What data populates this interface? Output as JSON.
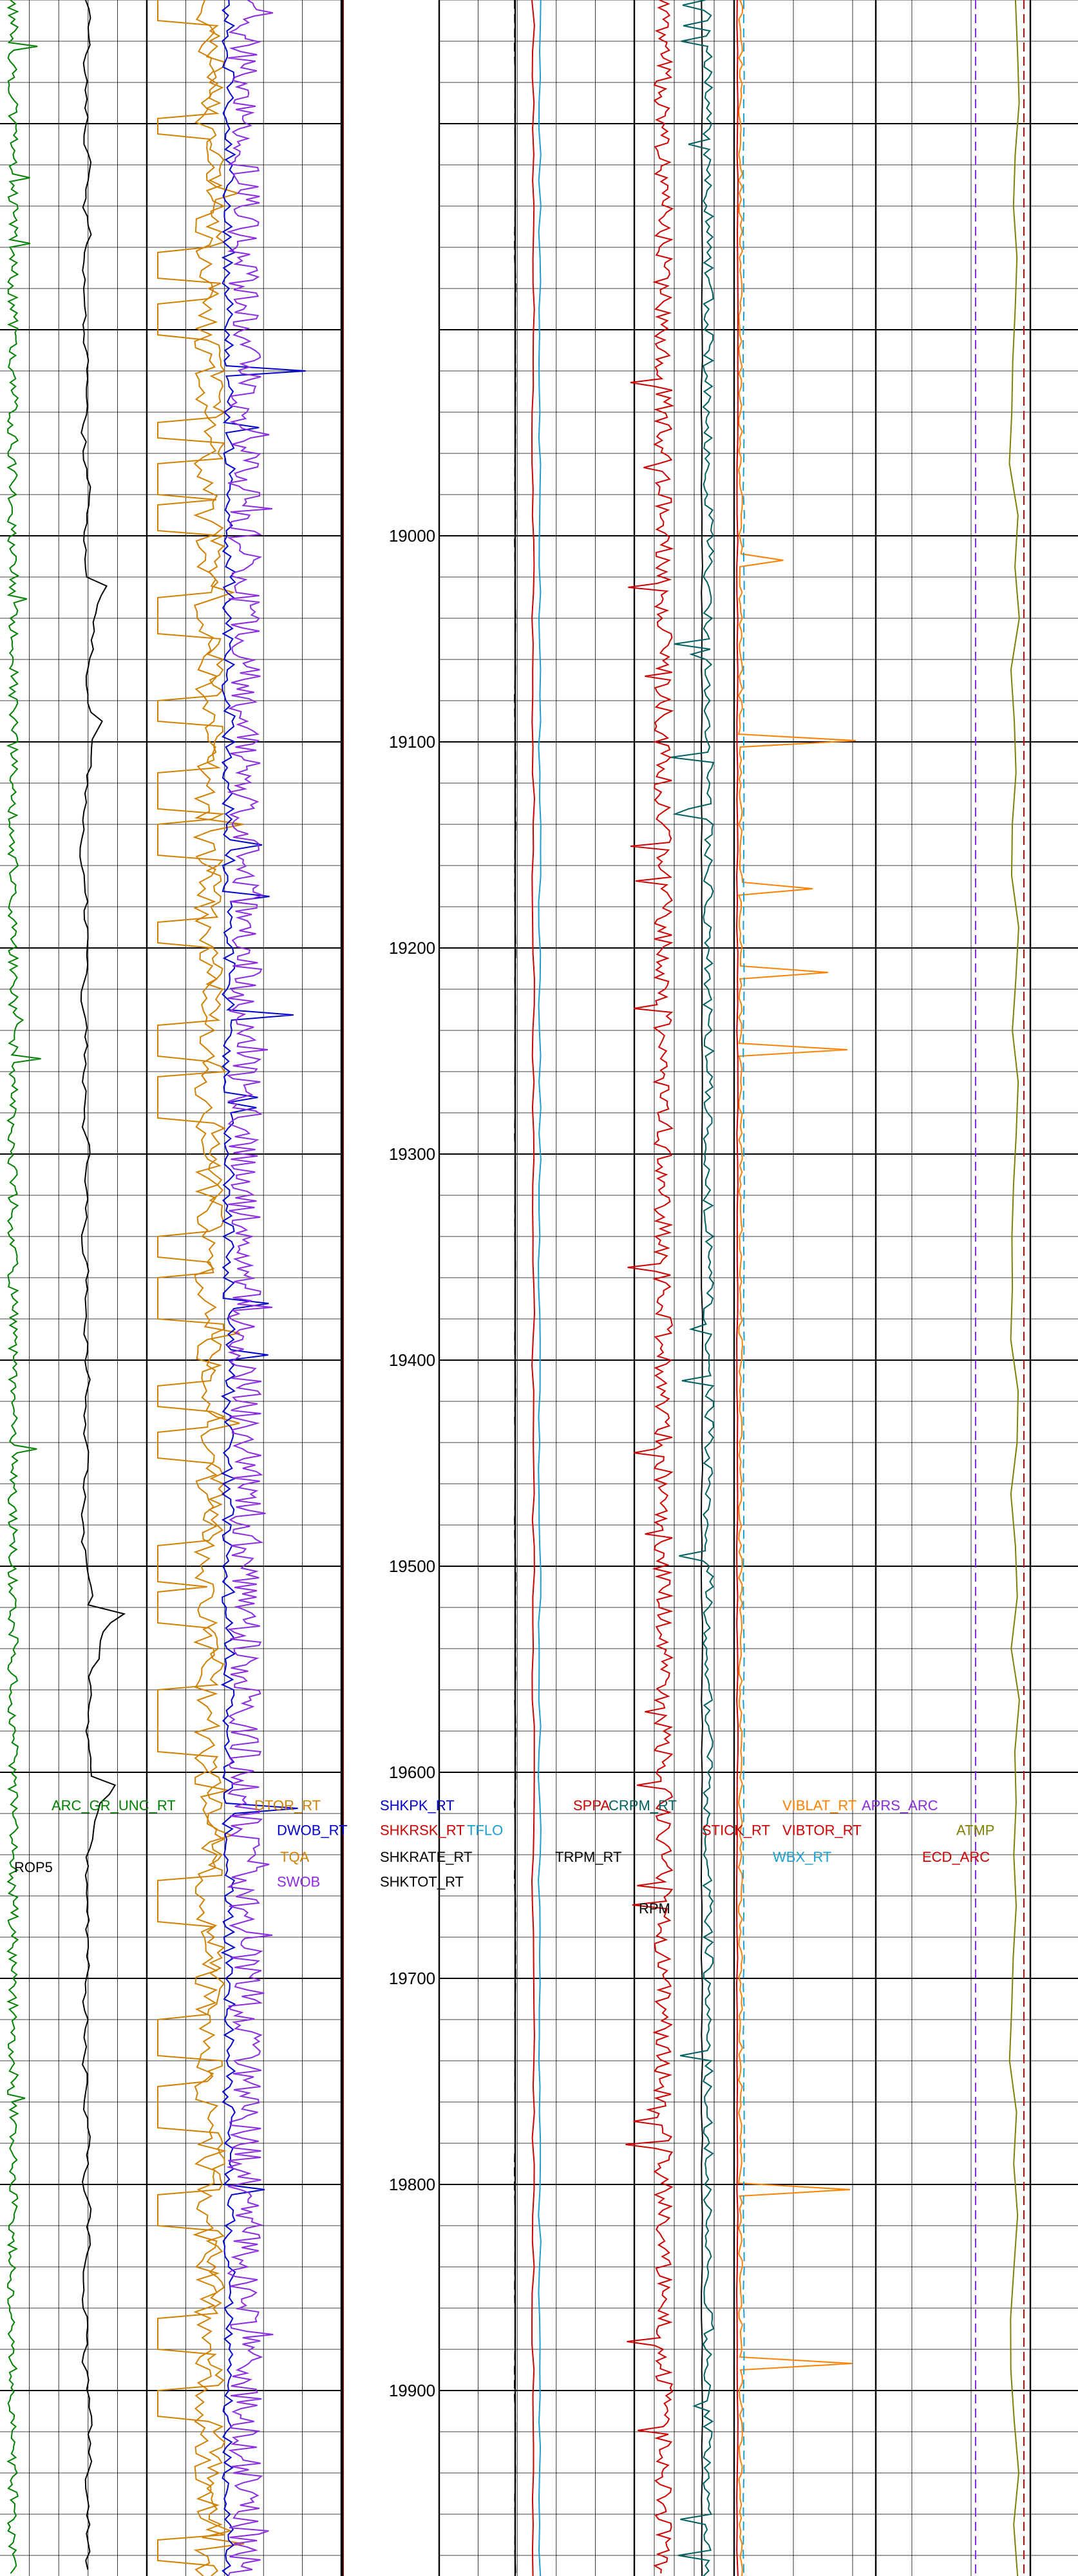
{
  "chart_data": {
    "type": "line",
    "title": "",
    "depth_axis": {
      "range": [
        18740,
        19990
      ],
      "major_step": 100,
      "minor_step": 20,
      "labels": [
        "19000",
        "19100",
        "19200",
        "19300",
        "19400",
        "19500",
        "19600",
        "19700",
        "19800",
        "19900"
      ]
    },
    "grid": true,
    "curve_labels": [
      {
        "text": "ARC_GR_UNC_RT",
        "color": "#008000",
        "depth": 19616
      },
      {
        "text": "ROP5",
        "color": "#000000",
        "depth": 19646
      },
      {
        "text": "DTOR_RT",
        "color": "#d08000",
        "depth": 19616
      },
      {
        "text": "DWOB_RT",
        "color": "#0000cc",
        "depth": 19628
      },
      {
        "text": "TQA",
        "color": "#d08000",
        "depth": 19641
      },
      {
        "text": "SWOB",
        "color": "#8a2be2",
        "depth": 19653
      },
      {
        "text": "SHKPK_RT",
        "color": "#0000cc",
        "depth": 19616
      },
      {
        "text": "SHKRSK_RT",
        "color": "#cc0000",
        "depth": 19628
      },
      {
        "text": "TFLO",
        "color": "#1a9fd0",
        "depth": 19628
      },
      {
        "text": "SHKRATE_RT",
        "color": "#000000",
        "depth": 19641
      },
      {
        "text": "SHKTOT_RT",
        "color": "#000000",
        "depth": 19653
      },
      {
        "text": "SPPA",
        "color": "#cc0000",
        "depth": 19616
      },
      {
        "text": "CRPM_RT",
        "color": "#006060",
        "depth": 19616
      },
      {
        "text": "TRPM_RT",
        "color": "#000000",
        "depth": 19641
      },
      {
        "text": "RPM",
        "color": "#000000",
        "depth": 19666
      },
      {
        "text": "STICK_RT",
        "color": "#cc0000",
        "depth": 19628
      },
      {
        "text": "VIBLAT_RT",
        "color": "#ff8000",
        "depth": 19616
      },
      {
        "text": "VIBTOR_RT",
        "color": "#cc0000",
        "depth": 19628
      },
      {
        "text": "WBX_RT",
        "color": "#1a9fd0",
        "depth": 19641
      },
      {
        "text": "APRS_ARC",
        "color": "#8a2be2",
        "depth": 19616
      },
      {
        "text": "ATMP",
        "color": "#808000",
        "depth": 19628
      },
      {
        "text": "ECD_ARC",
        "color": "#cc0000",
        "depth": 19641
      }
    ],
    "series": [
      {
        "name": "ARC_GR_UNC_RT",
        "color": "#008000",
        "track": 1
      },
      {
        "name": "ROP5",
        "color": "#000000",
        "track": 1
      },
      {
        "name": "DTOR_RT",
        "color": "#d08000",
        "track": 2
      },
      {
        "name": "TQA",
        "color": "#d08000",
        "track": 2
      },
      {
        "name": "DWOB_RT",
        "color": "#0000cc",
        "track": 2
      },
      {
        "name": "SWOB",
        "color": "#8a2be2",
        "track": 2
      },
      {
        "name": "SHKPK_RT",
        "color": "#0000cc",
        "track": 3
      },
      {
        "name": "SHKRSK_RT",
        "color": "#cc0000",
        "track": 3
      },
      {
        "name": "SHKRATE_RT",
        "color": "#000000",
        "track": 3
      },
      {
        "name": "SHKTOT_RT",
        "color": "#000000",
        "track": 3
      },
      {
        "name": "TFLO",
        "color": "#1a9fd0",
        "track": 4
      },
      {
        "name": "SPPA",
        "color": "#cc0000",
        "track": 4
      },
      {
        "name": "TRPM_RT",
        "color": "#000000",
        "track": 4
      },
      {
        "name": "RPM",
        "color": "#000000",
        "track": 4
      },
      {
        "name": "CRPM_RT",
        "color": "#006060",
        "track": 4
      },
      {
        "name": "STICK_RT",
        "color": "#cc0000",
        "track": 4
      },
      {
        "name": "VIBLAT_RT",
        "color": "#ff8000",
        "track": 5
      },
      {
        "name": "VIBTOR_RT",
        "color": "#cc0000",
        "track": 5
      },
      {
        "name": "WBX_RT",
        "color": "#1a9fd0",
        "track": 5
      },
      {
        "name": "APRS_ARC",
        "color": "#8a2be2",
        "track": 5
      },
      {
        "name": "ATMP",
        "color": "#808000",
        "track": 5
      },
      {
        "name": "ECD_ARC",
        "color": "#cc0000",
        "track": 5
      }
    ]
  }
}
